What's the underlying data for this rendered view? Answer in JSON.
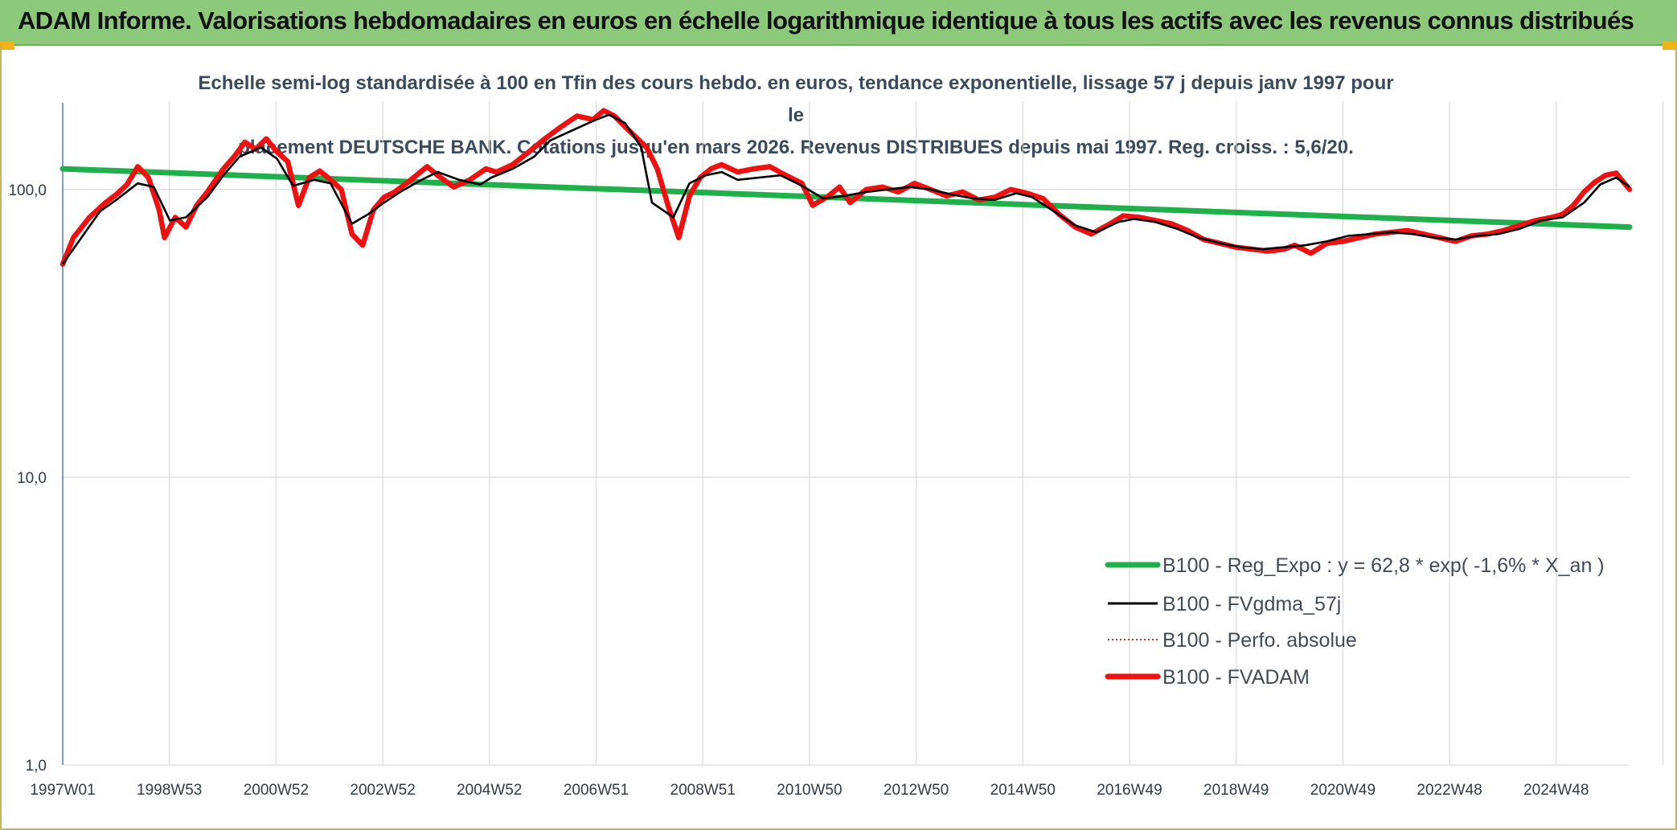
{
  "header": {
    "title": "ADAM Informe. Valorisations hebdomadaires en euros en échelle logarithmique identique à tous les actifs avec les revenus connus distribués"
  },
  "chart_data": {
    "type": "line",
    "title": "Echelle semi-log standardisée à 100 en Tfin des cours hebdo. en euros, tendance exponentielle, lissage 57 j depuis janv 1997 pour le",
    "subtitle": "placement DEUTSCHE BANK. Cotations jusqu'en mars 2026. Revenus DISTRIBUES depuis mai 1997. Reg. croiss. : 5,6/20.",
    "y_scale": "log",
    "ylim": [
      1,
      200
    ],
    "y_ticks": [
      {
        "value": 1,
        "label": "1,0"
      },
      {
        "value": 10,
        "label": "10,0"
      },
      {
        "value": 100,
        "label": "100,0"
      }
    ],
    "x_range": [
      1997.0,
      2026.25
    ],
    "x_ticks": [
      "1997W01",
      "1998W53",
      "2000W52",
      "2002W52",
      "2004W52",
      "2006W51",
      "2008W51",
      "2010W50",
      "2012W50",
      "2014W50",
      "2016W49",
      "2018W49",
      "2020W49",
      "2022W48",
      "2024W48"
    ],
    "grid": "vertical",
    "legend_position": "bottom-right",
    "series": [
      {
        "name": "B100 - Reg_Expo : y = 62,8 * exp( -1,6% *  X_an )",
        "color": "#1fb04c",
        "style": "thick",
        "x": [
          1997.0,
          2026.25
        ],
        "y": [
          118,
          74
        ]
      },
      {
        "name": "B100 - FVgdma_57j",
        "color": "#000000",
        "style": "thin",
        "x": [
          1997.0,
          1997.3,
          1997.7,
          1998.0,
          1998.4,
          1998.7,
          1999.0,
          1999.3,
          1999.7,
          2000.0,
          2000.3,
          2000.7,
          2001.0,
          2001.3,
          2001.7,
          2002.0,
          2002.4,
          2002.7,
          2003.0,
          2003.3,
          2003.7,
          2004.0,
          2004.4,
          2004.8,
          2005.0,
          2005.4,
          2005.8,
          2006.1,
          2006.5,
          2006.9,
          2007.2,
          2007.5,
          2007.8,
          2008.0,
          2008.4,
          2008.7,
          2009.0,
          2009.3,
          2009.6,
          2010.0,
          2010.4,
          2010.8,
          2011.2,
          2011.6,
          2012.0,
          2012.4,
          2012.8,
          2013.2,
          2013.6,
          2014.0,
          2014.4,
          2014.8,
          2015.1,
          2015.5,
          2015.9,
          2016.3,
          2016.7,
          2017.0,
          2017.4,
          2017.8,
          2018.2,
          2018.6,
          2019.0,
          2019.4,
          2019.8,
          2020.2,
          2020.6,
          2021.0,
          2021.4,
          2021.8,
          2022.2,
          2022.6,
          2023.0,
          2023.4,
          2023.8,
          2024.2,
          2024.6,
          2025.0,
          2025.4,
          2025.7,
          2026.0,
          2026.25
        ],
        "y": [
          55,
          66,
          84,
          92,
          105,
          102,
          78,
          80,
          94,
          112,
          130,
          140,
          128,
          103,
          108,
          105,
          76,
          82,
          90,
          98,
          108,
          115,
          108,
          104,
          110,
          118,
          130,
          148,
          160,
          173,
          182,
          170,
          140,
          90,
          80,
          105,
          112,
          115,
          108,
          110,
          112,
          103,
          93,
          95,
          98,
          100,
          102,
          100,
          96,
          93,
          92,
          97,
          94,
          84,
          75,
          71,
          77,
          79,
          77,
          73,
          68,
          65,
          63,
          62,
          63,
          64,
          66,
          69,
          70,
          71,
          70,
          68,
          67,
          69,
          70,
          73,
          78,
          80,
          90,
          104,
          110,
          102
        ]
      },
      {
        "name": "B100 - Perfo. absolue",
        "color": "#c0392b",
        "style": "dotted",
        "x": [
          1997.0,
          2002.0,
          2007.5,
          2012.0,
          2016.5,
          2021.0,
          2025.5,
          2026.25
        ],
        "y": [
          55,
          105,
          175,
          98,
          74,
          69,
          105,
          100
        ]
      },
      {
        "name": "B100 - FVADAM",
        "color": "#f01010",
        "style": "thick",
        "x": [
          1997.0,
          1997.2,
          1997.5,
          1997.8,
          1998.0,
          1998.2,
          1998.4,
          1998.6,
          1998.8,
          1998.9,
          1999.1,
          1999.3,
          1999.5,
          1999.7,
          2000.0,
          2000.2,
          2000.4,
          2000.6,
          2000.8,
          2001.0,
          2001.2,
          2001.4,
          2001.6,
          2001.8,
          2002.0,
          2002.2,
          2002.4,
          2002.6,
          2002.8,
          2003.0,
          2003.2,
          2003.5,
          2003.8,
          2004.0,
          2004.3,
          2004.6,
          2004.9,
          2005.1,
          2005.4,
          2005.7,
          2006.0,
          2006.3,
          2006.6,
          2006.9,
          2007.1,
          2007.3,
          2007.5,
          2007.7,
          2007.9,
          2008.1,
          2008.3,
          2008.5,
          2008.7,
          2008.9,
          2009.1,
          2009.3,
          2009.6,
          2009.9,
          2010.2,
          2010.5,
          2010.8,
          2011.0,
          2011.3,
          2011.5,
          2011.7,
          2012.0,
          2012.3,
          2012.6,
          2012.9,
          2013.2,
          2013.5,
          2013.8,
          2014.1,
          2014.4,
          2014.7,
          2015.0,
          2015.3,
          2015.6,
          2015.9,
          2016.2,
          2016.5,
          2016.8,
          2017.1,
          2017.4,
          2017.7,
          2018.0,
          2018.3,
          2018.6,
          2018.9,
          2019.2,
          2019.5,
          2019.8,
          2020.0,
          2020.3,
          2020.6,
          2020.9,
          2021.2,
          2021.5,
          2021.8,
          2022.1,
          2022.4,
          2022.7,
          2023.0,
          2023.3,
          2023.6,
          2023.9,
          2024.2,
          2024.5,
          2024.8,
          2025.0,
          2025.2,
          2025.4,
          2025.6,
          2025.8,
          2026.0,
          2026.1,
          2026.25
        ],
        "y": [
          55,
          68,
          80,
          90,
          96,
          104,
          120,
          110,
          85,
          68,
          80,
          74,
          88,
          98,
          118,
          130,
          146,
          138,
          150,
          135,
          125,
          88,
          110,
          116,
          108,
          100,
          70,
          64,
          85,
          94,
          98,
          108,
          120,
          112,
          102,
          108,
          118,
          115,
          122,
          135,
          150,
          165,
          180,
          175,
          188,
          180,
          165,
          152,
          140,
          118,
          88,
          68,
          95,
          110,
          118,
          122,
          115,
          118,
          120,
          112,
          105,
          88,
          95,
          102,
          90,
          100,
          102,
          98,
          105,
          100,
          95,
          98,
          92,
          94,
          100,
          97,
          93,
          82,
          74,
          70,
          75,
          81,
          80,
          78,
          76,
          72,
          67,
          65,
          63,
          62,
          61,
          62,
          64,
          60,
          65,
          66,
          68,
          70,
          71,
          72,
          70,
          68,
          66,
          69,
          70,
          72,
          75,
          78,
          80,
          82,
          88,
          98,
          106,
          112,
          114,
          108,
          100
        ]
      }
    ]
  }
}
